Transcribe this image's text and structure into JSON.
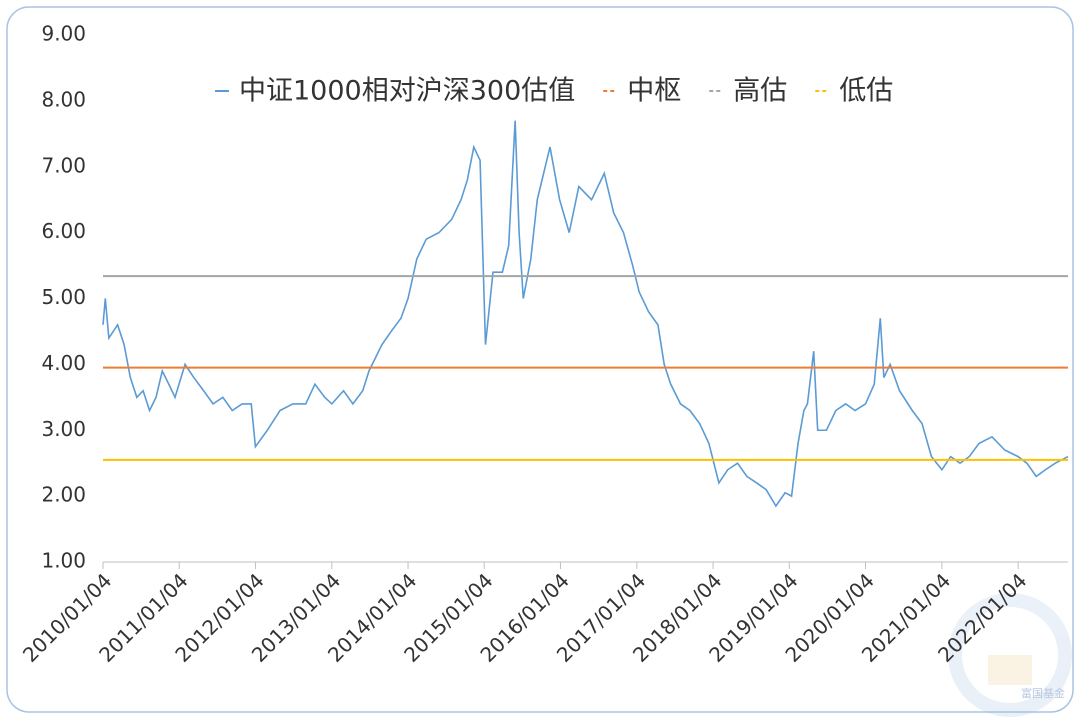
{
  "chart_data": {
    "type": "line",
    "x": [
      "2010/01/04",
      "2010/01/15",
      "2010/02/01",
      "2010/03/15",
      "2010/04/15",
      "2010/05/15",
      "2010/06/15",
      "2010/07/15",
      "2010/08/15",
      "2010/09/15",
      "2010/10/15",
      "2010/11/15",
      "2010/12/15",
      "2011/02/01",
      "2011/03/15",
      "2011/05/01",
      "2011/06/15",
      "2011/08/01",
      "2011/09/15",
      "2011/11/01",
      "2011/12/15",
      "2012/01/04",
      "2012/03/01",
      "2012/05/01",
      "2012/07/01",
      "2012/09/01",
      "2012/10/15",
      "2012/12/01",
      "2013/01/04",
      "2013/03/01",
      "2013/04/15",
      "2013/06/01",
      "2013/07/01",
      "2013/09/01",
      "2013/10/15",
      "2013/12/01",
      "2014/01/04",
      "2014/02/15",
      "2014/04/01",
      "2014/06/01",
      "2014/08/01",
      "2014/09/15",
      "2014/10/15",
      "2014/11/15",
      "2014/12/15",
      "2015/01/10",
      "2015/02/15",
      "2015/04/01",
      "2015/05/01",
      "2015/06/01",
      "2015/06/20",
      "2015/07/10",
      "2015/08/15",
      "2015/09/15",
      "2015/11/15",
      "2015/12/31",
      "2016/02/15",
      "2016/04/01",
      "2016/06/01",
      "2016/08/01",
      "2016/09/15",
      "2016/11/01",
      "2016/12/15",
      "2017/01/15",
      "2017/03/01",
      "2017/04/15",
      "2017/05/15",
      "2017/06/15",
      "2017/08/01",
      "2017/09/15",
      "2017/11/01",
      "2017/12/15",
      "2018/02/01",
      "2018/03/15",
      "2018/05/01",
      "2018/06/15",
      "2018/08/01",
      "2018/09/15",
      "2018/11/01",
      "2018/12/15",
      "2019/01/15",
      "2019/02/15",
      "2019/03/15",
      "2019/04/01",
      "2019/05/01",
      "2019/05/20",
      "2019/07/01",
      "2019/08/15",
      "2019/10/01",
      "2019/11/15",
      "2020/01/04",
      "2020/02/15",
      "2020/03/15",
      "2020/04/01",
      "2020/05/01",
      "2020/06/15",
      "2020/08/15",
      "2020/10/01",
      "2020/11/15",
      "2021/01/04",
      "2021/02/15",
      "2021/04/01",
      "2021/05/15",
      "2021/07/01",
      "2021/09/01",
      "2021/11/01",
      "2022/01/04",
      "2022/02/15",
      "2022/04/01",
      "2022/05/15",
      "2022/07/01",
      "2022/08/31"
    ],
    "series": [
      {
        "name": "中证1000相对沪深300估值",
        "color": "#5b9bd5",
        "values": [
          4.6,
          5.0,
          4.4,
          4.6,
          4.3,
          3.8,
          3.5,
          3.6,
          3.3,
          3.5,
          3.9,
          3.7,
          3.5,
          4.0,
          3.8,
          3.6,
          3.4,
          3.5,
          3.3,
          3.4,
          3.4,
          2.75,
          3.0,
          3.3,
          3.4,
          3.4,
          3.7,
          3.5,
          3.4,
          3.6,
          3.4,
          3.6,
          3.9,
          4.3,
          4.5,
          4.7,
          5.0,
          5.6,
          5.9,
          6.0,
          6.2,
          6.5,
          6.8,
          7.3,
          7.1,
          4.3,
          5.4,
          5.4,
          5.8,
          7.7,
          6.0,
          5.0,
          5.6,
          6.5,
          7.3,
          6.5,
          6.0,
          6.7,
          6.5,
          6.9,
          6.3,
          6.0,
          5.5,
          5.1,
          4.8,
          4.6,
          4.0,
          3.7,
          3.4,
          3.3,
          3.1,
          2.8,
          2.2,
          2.4,
          2.5,
          2.3,
          2.2,
          2.1,
          1.85,
          2.05,
          2.0,
          2.8,
          3.3,
          3.4,
          4.2,
          3.0,
          3.0,
          3.3,
          3.4,
          3.3,
          3.4,
          3.7,
          4.7,
          3.8,
          4.0,
          3.6,
          3.3,
          3.1,
          2.6,
          2.4,
          2.6,
          2.5,
          2.6,
          2.8,
          2.9,
          2.7,
          2.6,
          2.5,
          2.3,
          2.4,
          2.5,
          2.6
        ]
      },
      {
        "name": "中枢",
        "color": "#ed7d31",
        "x": [
          "2010/01/04",
          "2022/08/31"
        ],
        "values": [
          3.95,
          3.95
        ]
      },
      {
        "name": "高估",
        "color": "#a5a5a5",
        "x": [
          "2010/01/04",
          "2022/08/31"
        ],
        "values": [
          5.34,
          5.34
        ]
      },
      {
        "name": "低估",
        "color": "#ffc000",
        "x": [
          "2010/01/04",
          "2022/08/31"
        ],
        "values": [
          2.55,
          2.55
        ]
      }
    ],
    "xlim": [
      "2010/01/04",
      "2022/08/31"
    ],
    "xticks": [
      "2010/01/04",
      "2011/01/04",
      "2012/01/04",
      "2013/01/04",
      "2014/01/04",
      "2015/01/04",
      "2016/01/04",
      "2017/01/04",
      "2018/01/04",
      "2019/01/04",
      "2020/01/04",
      "2021/01/04",
      "2022/01/04"
    ],
    "ylim": [
      1,
      9
    ],
    "yticks": [
      {
        "value": 1,
        "label": "1.00"
      },
      {
        "value": 2,
        "label": "2.00"
      },
      {
        "value": 3,
        "label": "3.00"
      },
      {
        "value": 4,
        "label": "4.00"
      },
      {
        "value": 5,
        "label": "5.00"
      },
      {
        "value": 6,
        "label": "6.00"
      },
      {
        "value": 7,
        "label": "7.00"
      },
      {
        "value": 8,
        "label": "8.00"
      },
      {
        "value": 9,
        "label": "9.00"
      }
    ],
    "grid": false,
    "legend": "top",
    "watermark": "富国基金"
  }
}
